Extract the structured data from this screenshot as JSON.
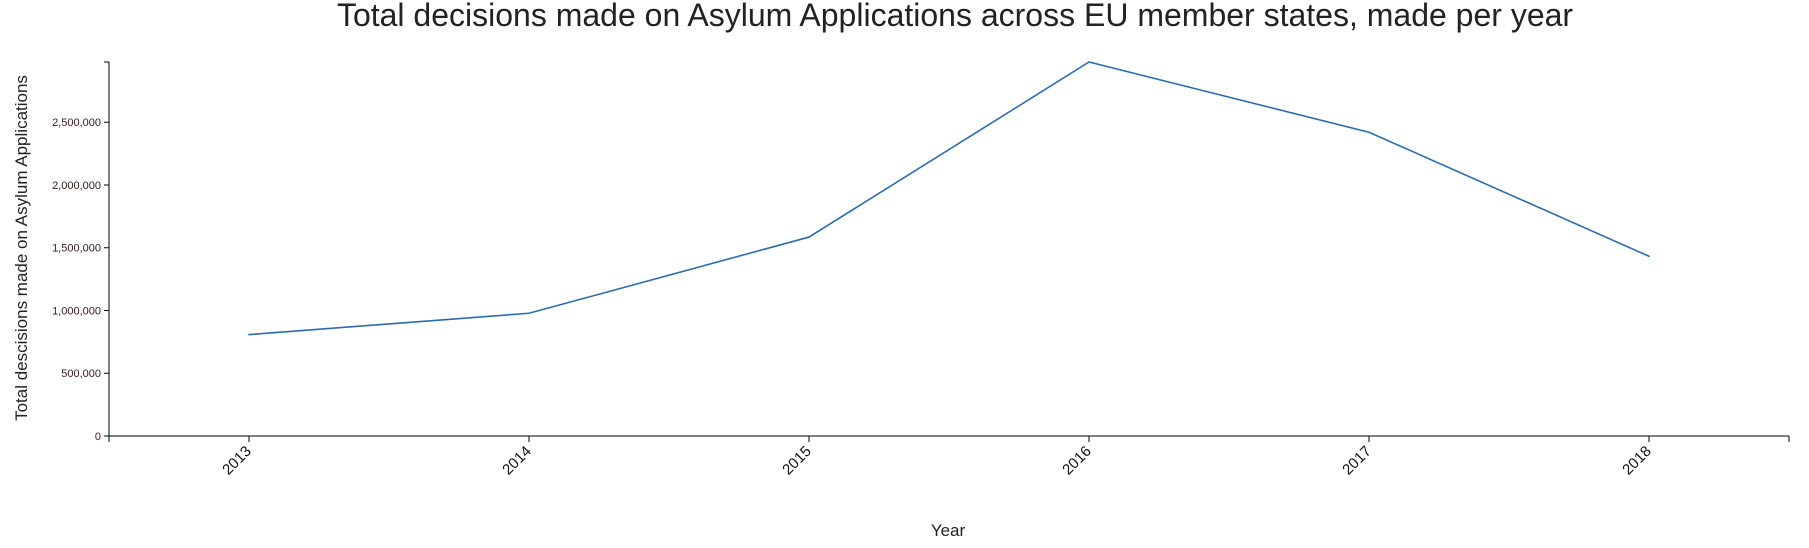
{
  "chart_data": {
    "type": "line",
    "title": "Total decisions made on Asylum Applications across EU member states, made per year",
    "xlabel": "Year",
    "ylabel": "Total descisions made on Asylum Applications",
    "categories": [
      "2013",
      "2014",
      "2015",
      "2016",
      "2017",
      "2018"
    ],
    "series": [
      {
        "name": "",
        "values": [
          808000,
          978000,
          1585000,
          2980000,
          2420000,
          1432000
        ]
      }
    ],
    "yticks": [
      0,
      500000,
      1000000,
      1500000,
      2000000,
      2500000
    ],
    "ytick_labels": [
      "0",
      "500,000",
      "1,000,000",
      "1,500,000",
      "2,000,000",
      "2,500,000"
    ],
    "ylim": [
      0,
      2980000
    ],
    "grid": false,
    "line_color": "#2b6cb0"
  }
}
